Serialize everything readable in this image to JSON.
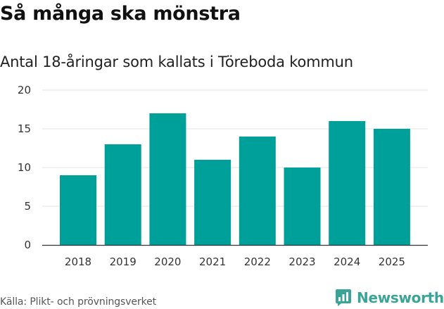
{
  "chart_data": {
    "type": "bar",
    "title": "Så många ska mönstra",
    "subtitle": "Antal 18-åringar som kallats i Töreboda kommun",
    "categories": [
      "2018",
      "2019",
      "2020",
      "2021",
      "2022",
      "2023",
      "2024",
      "2025"
    ],
    "values": [
      9,
      13,
      17,
      11,
      14,
      10,
      16,
      15
    ],
    "xlabel": "",
    "ylabel": "",
    "ylim": [
      0,
      20
    ],
    "yticks": [
      0,
      5,
      10,
      15,
      20
    ],
    "grid": true,
    "bar_color": "#00a09a"
  },
  "source": "Källa: Plikt- och prövningsverket",
  "brand": {
    "name": "Newsworthy",
    "color": "#3aa597"
  }
}
